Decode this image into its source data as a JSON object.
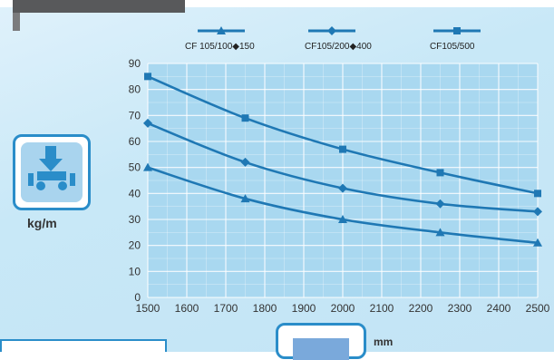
{
  "chart_data": {
    "type": "line",
    "x": [
      1500,
      1750,
      2000,
      2250,
      2500
    ],
    "xticks": [
      1500,
      1600,
      1700,
      1800,
      1900,
      2000,
      2100,
      2200,
      2300,
      2400,
      2500
    ],
    "yticks": [
      0,
      10,
      20,
      30,
      40,
      50,
      60,
      70,
      80,
      90
    ],
    "xlim": [
      1500,
      2500
    ],
    "ylim": [
      0,
      90
    ],
    "xlabel": "mm",
    "ylabel": "kg/m",
    "grid": true,
    "legend_position": "top",
    "series": [
      {
        "name": "CF 105/100◆150",
        "marker": "triangle",
        "values": [
          50,
          38,
          30,
          25,
          21
        ]
      },
      {
        "name": "CF105/200◆400",
        "marker": "diamond",
        "values": [
          67,
          52,
          42,
          36,
          33
        ]
      },
      {
        "name": "CF105/500",
        "marker": "square",
        "values": [
          85,
          69,
          57,
          48,
          40
        ]
      }
    ],
    "colors": {
      "line": "#1f78b4",
      "plot_bg": "#a9d8f0",
      "grid": "#ffffff"
    }
  }
}
